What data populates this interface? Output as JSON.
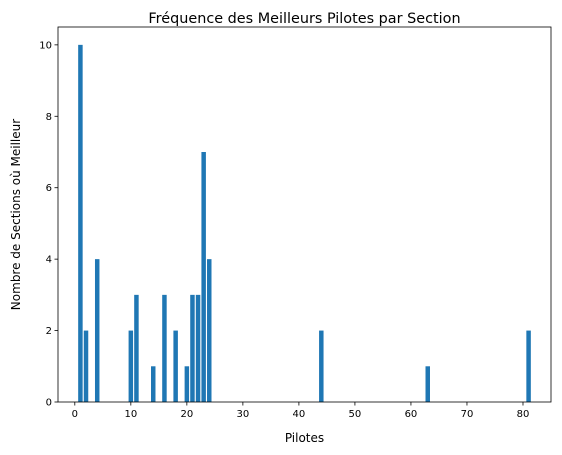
{
  "chart_data": {
    "type": "bar",
    "title": "Fréquence des Meilleurs Pilotes par Section",
    "xlabel": "Pilotes",
    "ylabel": "Nombre de Sections où Meilleur",
    "xlim": [
      -3,
      85
    ],
    "ylim": [
      0,
      10.5
    ],
    "xticks": [
      0,
      10,
      20,
      30,
      40,
      50,
      60,
      70,
      80
    ],
    "yticks": [
      0,
      2,
      4,
      6,
      8,
      10
    ],
    "bar_color": "#1f77b4",
    "grid": false,
    "series": [
      {
        "x": [
          1,
          2,
          4,
          10,
          11,
          14,
          16,
          18,
          20,
          21,
          22,
          23,
          24,
          44,
          63,
          81
        ],
        "values": [
          10,
          2,
          4,
          2,
          3,
          1,
          3,
          2,
          1,
          3,
          3,
          7,
          4,
          2,
          1,
          2
        ]
      }
    ]
  }
}
